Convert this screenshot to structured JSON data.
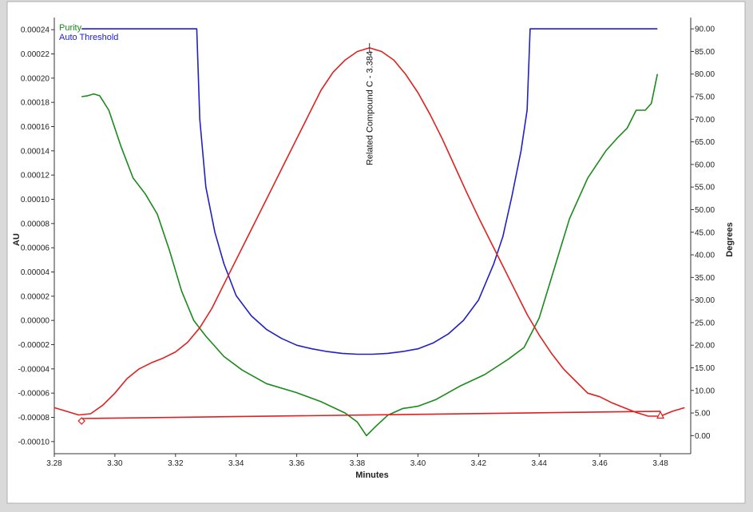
{
  "chart_data": {
    "type": "line",
    "xlabel": "Minutes",
    "ylabel": "AU",
    "y2label": "Degrees",
    "xlim": [
      3.28,
      3.49
    ],
    "ylim": [
      -0.00011,
      0.00025
    ],
    "y2lim": [
      -4,
      92.5
    ],
    "x_ticks": [
      3.28,
      3.3,
      3.32,
      3.34,
      3.36,
      3.38,
      3.4,
      3.42,
      3.44,
      3.46,
      3.48
    ],
    "x_tick_labels": [
      "3.28",
      "3.30",
      "3.32",
      "3.34",
      "3.36",
      "3.38",
      "3.40",
      "3.42",
      "3.44",
      "3.46",
      "3.48"
    ],
    "y_ticks": [
      -0.0001,
      -8e-05,
      -6e-05,
      -4e-05,
      -2e-05,
      0,
      2e-05,
      4e-05,
      6e-05,
      8e-05,
      0.0001,
      0.00012,
      0.00014,
      0.00016,
      0.00018,
      0.0002,
      0.00022,
      0.00024
    ],
    "y_tick_labels": [
      "-0.00010",
      "-0.00008",
      "-0.00006",
      "-0.00004",
      "-0.00002",
      "0.00000",
      "0.00002",
      "0.00004",
      "0.00006",
      "0.00008",
      "0.00010",
      "0.00012",
      "0.00014",
      "0.00016",
      "0.00018",
      "0.00020",
      "0.00022",
      "0.00024"
    ],
    "y2_ticks": [
      0,
      5,
      10,
      15,
      20,
      25,
      30,
      35,
      40,
      45,
      50,
      55,
      60,
      65,
      70,
      75,
      80,
      85,
      90
    ],
    "y2_tick_labels": [
      "0.00",
      "5.00",
      "10.00",
      "15.00",
      "20.00",
      "25.00",
      "30.00",
      "35.00",
      "40.00",
      "45.00",
      "50.00",
      "55.00",
      "60.00",
      "65.00",
      "70.00",
      "75.00",
      "80.00",
      "85.00",
      "90.00"
    ],
    "legend": {
      "placement": "top-left"
    },
    "series": [
      {
        "name": "Purity",
        "axis": "y2",
        "color": "#1a8a1a",
        "x": [
          3.289,
          3.291,
          3.293,
          3.295,
          3.298,
          3.302,
          3.306,
          3.31,
          3.314,
          3.318,
          3.322,
          3.326,
          3.33,
          3.336,
          3.342,
          3.35,
          3.36,
          3.368,
          3.376,
          3.38,
          3.383,
          3.386,
          3.39,
          3.395,
          3.4,
          3.406,
          3.414,
          3.422,
          3.43,
          3.435,
          3.44,
          3.445,
          3.45,
          3.456,
          3.462,
          3.466,
          3.469,
          3.472,
          3.475,
          3.477,
          3.479
        ],
        "y": [
          75.0,
          75.2,
          75.6,
          75.2,
          72.0,
          64.0,
          57.0,
          53.5,
          49.0,
          41.0,
          32.0,
          25.5,
          22.0,
          17.5,
          14.5,
          11.5,
          9.5,
          7.5,
          5.0,
          3.0,
          0.0,
          2.0,
          4.5,
          6.0,
          6.5,
          8.0,
          11.0,
          13.5,
          17.0,
          19.5,
          26.0,
          37.0,
          48.0,
          57.0,
          63.0,
          66.0,
          68.0,
          72.0,
          72.0,
          73.5,
          80.0
        ]
      },
      {
        "name": "Auto Threshold",
        "axis": "y2",
        "color": "#2020c8",
        "x": [
          3.289,
          3.327,
          3.328,
          3.33,
          3.333,
          3.336,
          3.34,
          3.345,
          3.35,
          3.355,
          3.36,
          3.365,
          3.37,
          3.375,
          3.38,
          3.385,
          3.39,
          3.395,
          3.4,
          3.405,
          3.41,
          3.415,
          3.42,
          3.425,
          3.428,
          3.431,
          3.434,
          3.436,
          3.437,
          3.479
        ],
        "y": [
          90.0,
          90.0,
          70.0,
          55.0,
          45.0,
          38.0,
          31.0,
          26.5,
          23.5,
          21.5,
          20.0,
          19.2,
          18.6,
          18.2,
          18.0,
          18.0,
          18.2,
          18.6,
          19.2,
          20.5,
          22.5,
          25.5,
          30.0,
          38.0,
          44.0,
          53.0,
          63.0,
          72.0,
          90.0,
          90.0
        ]
      },
      {
        "name": "",
        "axis": "y",
        "color": "#e02020",
        "x": [
          3.28,
          3.284,
          3.288,
          3.292,
          3.296,
          3.3,
          3.304,
          3.308,
          3.312,
          3.316,
          3.32,
          3.324,
          3.328,
          3.332,
          3.336,
          3.34,
          3.344,
          3.348,
          3.352,
          3.356,
          3.36,
          3.364,
          3.368,
          3.372,
          3.376,
          3.38,
          3.384,
          3.388,
          3.392,
          3.396,
          3.4,
          3.404,
          3.408,
          3.412,
          3.416,
          3.42,
          3.424,
          3.428,
          3.432,
          3.436,
          3.44,
          3.444,
          3.448,
          3.452,
          3.456,
          3.46,
          3.464,
          3.468,
          3.472,
          3.476,
          3.48,
          3.484,
          3.488
        ],
        "y": [
          -7.2e-05,
          -7.5e-05,
          -7.8e-05,
          -7.7e-05,
          -7e-05,
          -6e-05,
          -4.8e-05,
          -4e-05,
          -3.5e-05,
          -3.1e-05,
          -2.6e-05,
          -1.8e-05,
          -6e-06,
          1e-05,
          3e-05,
          5e-05,
          7e-05,
          9e-05,
          0.00011,
          0.00013,
          0.00015,
          0.00017,
          0.00019,
          0.000205,
          0.000215,
          0.000222,
          0.000225,
          0.000222,
          0.000215,
          0.000203,
          0.000188,
          0.00017,
          0.00015,
          0.000128,
          0.000106,
          8.5e-05,
          6.5e-05,
          4.5e-05,
          2.5e-05,
          5e-06,
          -1.2e-05,
          -2.7e-05,
          -4e-05,
          -5e-05,
          -6e-05,
          -6.3e-05,
          -6.8e-05,
          -7.2e-05,
          -7.6e-05,
          -7.9e-05,
          -7.9e-05,
          -7.5e-05,
          -7.2e-05
        ]
      },
      {
        "name": "",
        "axis": "y",
        "color": "#e02020",
        "x": [
          3.289,
          3.48
        ],
        "y": [
          -8.1e-05,
          -7.5e-05
        ]
      }
    ],
    "markers": [
      {
        "shape": "diamond",
        "x": 3.289,
        "y": -8.3e-05,
        "color": "#e02020"
      },
      {
        "shape": "triangle",
        "x": 3.48,
        "y": -7.8e-05,
        "color": "#e02020"
      }
    ],
    "annotations": [
      {
        "text": "Related Compound C - 3.384",
        "x": 3.384,
        "y": 0.000225,
        "orientation": "vertical"
      }
    ]
  }
}
